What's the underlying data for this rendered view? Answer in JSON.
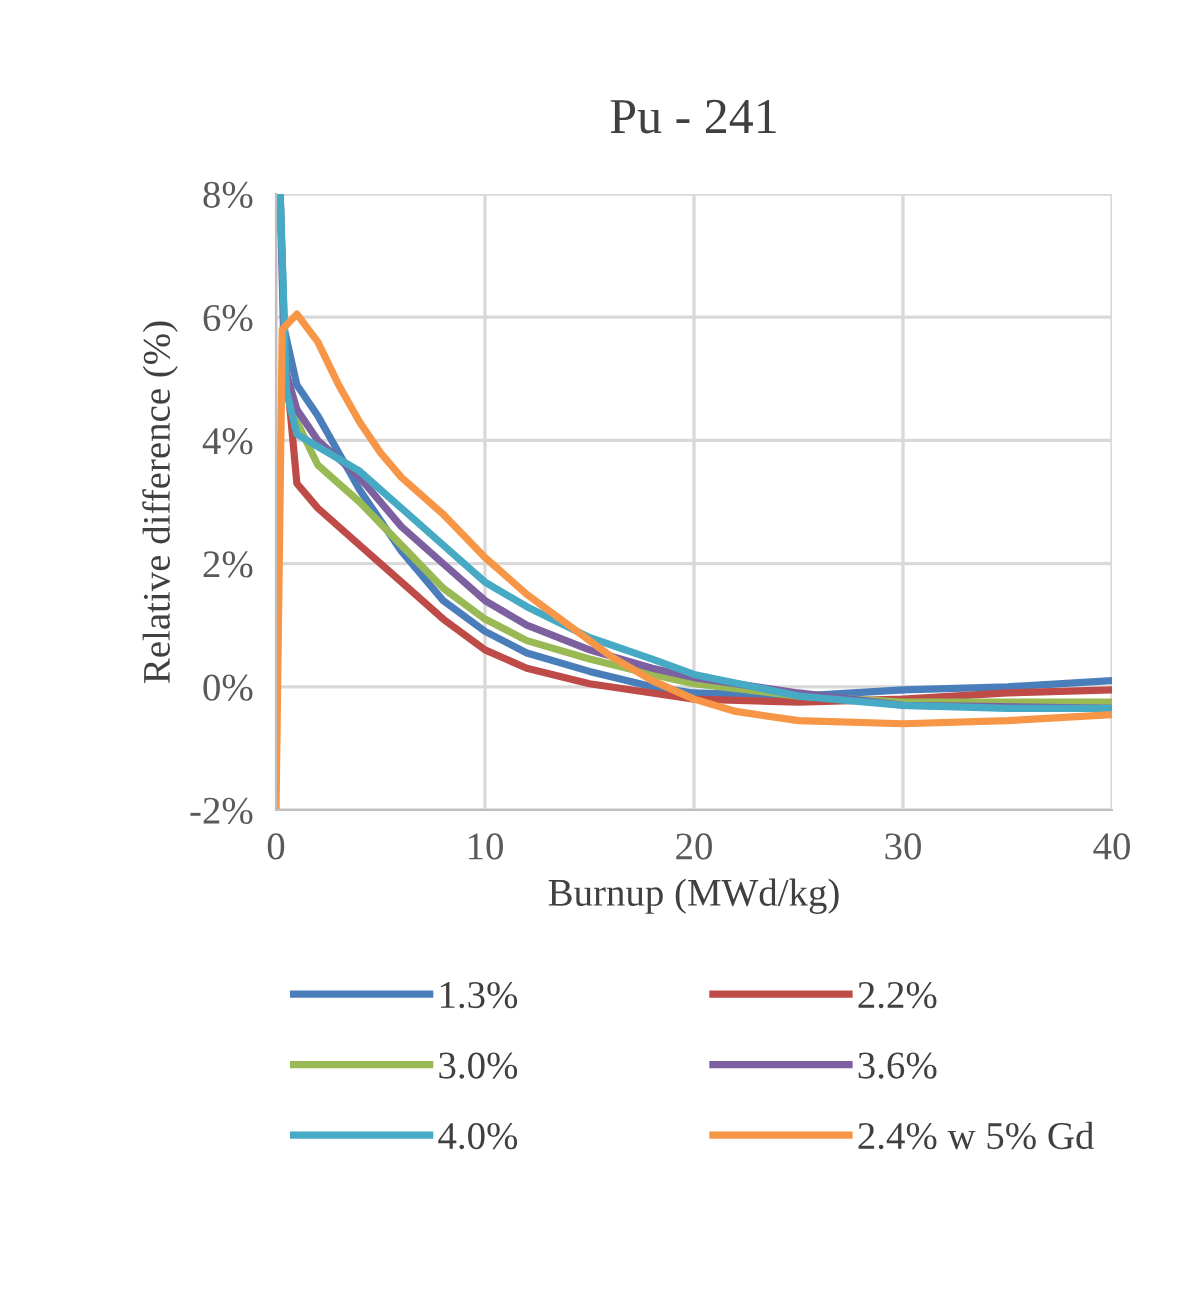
{
  "chart_data": {
    "type": "line",
    "title": "Pu - 241",
    "xlabel": "Burnup (MWd/kg)",
    "ylabel": "Relative difference (%)",
    "xlim": [
      0,
      40
    ],
    "xticks": [
      0,
      10,
      20,
      30,
      40
    ],
    "ylim": [
      -2,
      8
    ],
    "yticks": [
      {
        "value": -2,
        "label": "-2%"
      },
      {
        "value": 0,
        "label": "0%"
      },
      {
        "value": 2,
        "label": "2%"
      },
      {
        "value": 4,
        "label": "4%"
      },
      {
        "value": 6,
        "label": "6%"
      },
      {
        "value": 8,
        "label": "8%"
      }
    ],
    "grid": true,
    "legend": "bottom",
    "marker": "none",
    "line_style": "solid",
    "series": [
      {
        "name": "1.3%",
        "color": "#4a7ebb",
        "x": [
          0.2,
          0.4,
          1,
          2,
          3,
          4,
          5,
          6,
          8,
          10,
          12,
          15,
          18,
          20,
          25,
          30,
          35,
          40
        ],
        "values": [
          8,
          5.8,
          4.9,
          4.4,
          3.8,
          3.2,
          2.7,
          2.2,
          1.4,
          0.9,
          0.55,
          0.25,
          0.0,
          -0.1,
          -0.15,
          -0.05,
          0.0,
          0.1
        ]
      },
      {
        "name": "2.2%",
        "color": "#be4b48",
        "x": [
          0.4,
          1,
          2,
          4,
          6,
          8,
          10,
          12,
          15,
          18,
          20,
          25,
          30,
          35,
          40
        ],
        "values": [
          5.5,
          3.3,
          2.9,
          2.3,
          1.7,
          1.1,
          0.6,
          0.3,
          0.05,
          -0.1,
          -0.2,
          -0.25,
          -0.2,
          -0.1,
          -0.05
        ]
      },
      {
        "name": "3.0%",
        "color": "#98b954",
        "x": [
          0.4,
          1,
          2,
          4,
          6,
          8,
          10,
          12,
          15,
          18,
          20,
          25,
          30,
          40
        ],
        "values": [
          5.0,
          4.3,
          3.6,
          3.0,
          2.3,
          1.6,
          1.1,
          0.75,
          0.45,
          0.2,
          0.05,
          -0.15,
          -0.25,
          -0.25
        ]
      },
      {
        "name": "3.6%",
        "color": "#7d60a0",
        "x": [
          0.2,
          0.4,
          1,
          2,
          4,
          6,
          8,
          10,
          12,
          15,
          18,
          20,
          25,
          30,
          40
        ],
        "values": [
          8,
          5.2,
          4.5,
          4.0,
          3.4,
          2.6,
          2.0,
          1.4,
          1.0,
          0.6,
          0.3,
          0.15,
          -0.1,
          -0.3,
          -0.35
        ]
      },
      {
        "name": "4.0%",
        "color": "#46aac5",
        "x": [
          0.2,
          0.5,
          1,
          2,
          4,
          6,
          8,
          10,
          12,
          15,
          18,
          20,
          25,
          30,
          35,
          40
        ],
        "values": [
          8,
          4.8,
          4.1,
          3.9,
          3.5,
          2.9,
          2.3,
          1.7,
          1.3,
          0.8,
          0.45,
          0.2,
          -0.15,
          -0.3,
          -0.35,
          -0.35
        ]
      },
      {
        "name": "2.4% w 5% Gd",
        "color": "#f79646",
        "x": [
          0,
          0.3,
          1,
          2,
          3,
          4,
          5,
          6,
          8,
          10,
          12,
          14,
          16,
          18,
          20,
          22,
          25,
          30,
          35,
          40
        ],
        "values": [
          -2,
          5.8,
          6.05,
          5.6,
          4.9,
          4.3,
          3.8,
          3.4,
          2.8,
          2.1,
          1.5,
          1.0,
          0.5,
          0.1,
          -0.2,
          -0.4,
          -0.55,
          -0.6,
          -0.55,
          -0.45
        ]
      }
    ]
  }
}
